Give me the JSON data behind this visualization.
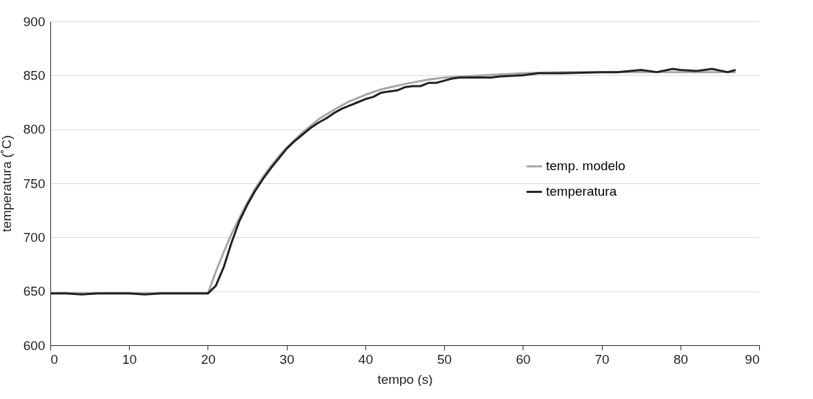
{
  "chart_data": {
    "type": "line",
    "xlabel": "tempo (s)",
    "ylabel": "temperatura (˚C)",
    "xlim": [
      0,
      90
    ],
    "xticks": [
      0,
      10,
      20,
      30,
      40,
      50,
      60,
      70,
      80,
      90
    ],
    "ylim": [
      600,
      900
    ],
    "yticks": [
      600,
      650,
      700,
      750,
      800,
      850,
      900
    ],
    "grid": "y",
    "legend": "right",
    "line_style": "solid",
    "series": [
      {
        "name": "temp. modelo",
        "color": "#a6a6a6",
        "x": [
          0,
          20,
          21,
          22,
          23,
          24,
          25,
          26,
          27,
          28,
          29,
          30,
          32,
          34,
          36,
          38,
          40,
          42,
          45,
          48,
          50,
          55,
          60,
          65,
          70,
          75,
          80,
          87
        ],
        "values": [
          648,
          648,
          668,
          686,
          703,
          718,
          732,
          745,
          756,
          766,
          775,
          783,
          797,
          809,
          818,
          826,
          832,
          837,
          842,
          846,
          848,
          850,
          852,
          853,
          853,
          853,
          853,
          853
        ]
      },
      {
        "name": "temperatura",
        "color": "#231f20",
        "x": [
          0,
          2,
          4,
          6,
          8,
          10,
          12,
          14,
          16,
          18,
          20,
          21,
          22,
          23,
          24,
          25,
          26,
          27,
          28,
          29,
          30,
          31,
          32,
          33,
          34,
          35,
          36,
          37,
          38,
          39,
          40,
          41,
          42,
          43,
          44,
          45,
          46,
          47,
          48,
          49,
          50,
          51,
          52,
          55,
          56,
          57,
          60,
          62,
          65,
          70,
          72,
          75,
          77,
          79,
          80,
          82,
          84,
          86,
          87
        ],
        "values": [
          648,
          648,
          647,
          648,
          648,
          648,
          647,
          648,
          648,
          648,
          648,
          655,
          672,
          695,
          715,
          730,
          743,
          754,
          764,
          773,
          782,
          789,
          795,
          801,
          806,
          810,
          815,
          819,
          822,
          825,
          828,
          830,
          834,
          835,
          836,
          839,
          840,
          840,
          843,
          843,
          845,
          847,
          848,
          848,
          848,
          849,
          850,
          852,
          852,
          853,
          853,
          855,
          853,
          856,
          855,
          854,
          856,
          853,
          855
        ]
      }
    ]
  }
}
